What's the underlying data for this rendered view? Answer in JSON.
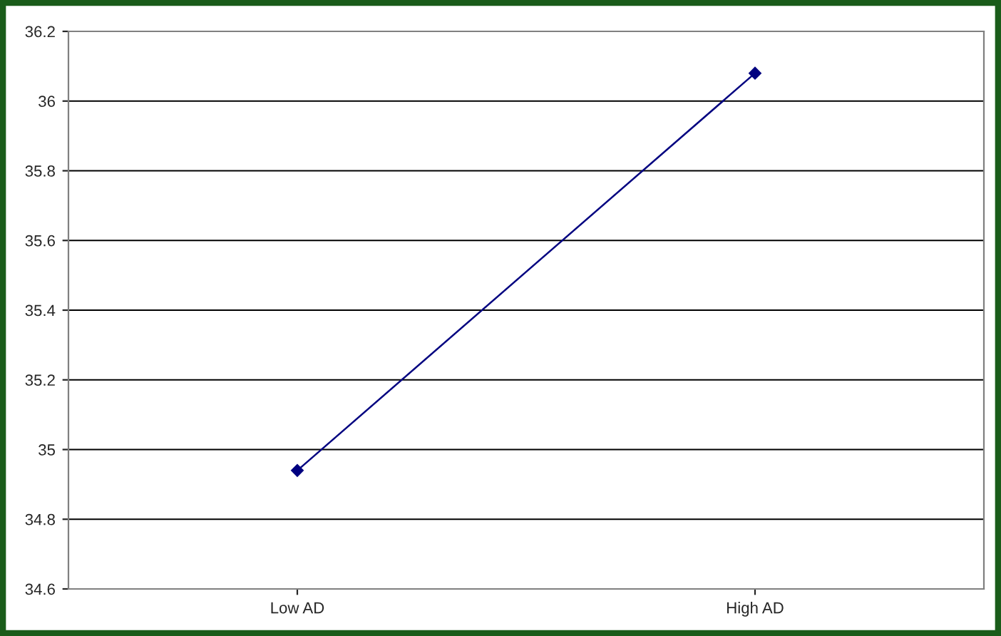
{
  "chart_data": {
    "type": "line",
    "categories": [
      "Low AD",
      "High AD"
    ],
    "series": [
      {
        "color": "#000080",
        "values": [
          34.94,
          36.08
        ]
      }
    ],
    "ylim": [
      34.6,
      36.2
    ],
    "yticks": [
      34.6,
      34.8,
      35,
      35.2,
      35.4,
      35.6,
      35.8,
      36,
      36.2
    ],
    "grid": "y",
    "marker": "diamond",
    "line_style": "solid",
    "legend": false
  }
}
